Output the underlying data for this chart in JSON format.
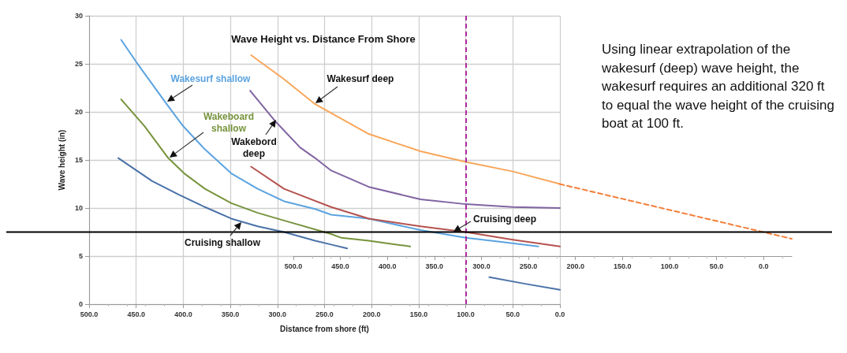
{
  "chart_data": {
    "type": "line",
    "title": "Wave Height vs. Distance From Shore",
    "xlabel": "Distance from shore (ft)",
    "ylabel": "Wave height (in)",
    "xlim": [
      500,
      0
    ],
    "xticks": [
      {
        "value": 500,
        "label": "500.0"
      },
      {
        "value": 450,
        "label": "450.0"
      },
      {
        "value": 400,
        "label": "400.0"
      },
      {
        "value": 350,
        "label": "350.0"
      },
      {
        "value": 300,
        "label": "300.0"
      },
      {
        "value": 250,
        "label": "250.0"
      },
      {
        "value": 200,
        "label": "200.0"
      },
      {
        "value": 150,
        "label": "150.0"
      },
      {
        "value": 100,
        "label": "100.0"
      },
      {
        "value": 50,
        "label": "50.0"
      },
      {
        "value": 0,
        "label": "0.0"
      }
    ],
    "x2lim": [
      500,
      -30
    ],
    "x2ticks": [
      {
        "value": 500,
        "label": "500.0"
      },
      {
        "value": 450,
        "label": "450.0"
      },
      {
        "value": 400,
        "label": "400.0"
      },
      {
        "value": 350,
        "label": "350.0"
      },
      {
        "value": 300,
        "label": "300.0"
      },
      {
        "value": 250,
        "label": "250.0"
      },
      {
        "value": 200,
        "label": "200.0"
      },
      {
        "value": 150,
        "label": "150.0"
      },
      {
        "value": 100,
        "label": "100.0"
      },
      {
        "value": 50,
        "label": "50.0"
      },
      {
        "value": 0,
        "label": "0.0"
      }
    ],
    "ylim": [
      0,
      30
    ],
    "yticks": [
      0,
      5,
      10,
      15,
      20,
      25,
      30
    ],
    "grid": true,
    "legend": false,
    "marker": "none",
    "line_style": "solid",
    "series": [
      {
        "name": "Wakesurf shallow",
        "color": "#5ba3e0",
        "x": [
          466,
          450,
          419,
          400,
          377,
          349,
          321,
          293,
          260,
          243,
          203,
          148,
          100,
          64,
          23
        ],
        "values": [
          27.5,
          25.2,
          21,
          18.5,
          16.1,
          13.6,
          12,
          10.7,
          9.9,
          9.3,
          8.9,
          7.7,
          6.9,
          6.5,
          6
        ]
      },
      {
        "name": "Wakeboard shallow",
        "color": "#77933c",
        "x": [
          466,
          441,
          416,
          399,
          377,
          349,
          321,
          293,
          243,
          232,
          203,
          159
        ],
        "values": [
          21.3,
          18.5,
          15.2,
          13.6,
          12,
          10.5,
          9.5,
          8.7,
          7.3,
          6.9,
          6.6,
          6
        ]
      },
      {
        "name": "Cruising shallow",
        "color": "#4a72a8",
        "x": [
          469,
          433,
          405,
          377,
          349,
          321,
          293,
          260,
          243,
          226,
          150,
          75,
          36,
          0
        ],
        "values": [
          15.2,
          12.8,
          11.4,
          10.1,
          8.9,
          8.1,
          7.5,
          6.6,
          6.2,
          5.8,
          null,
          2.8,
          2.1,
          1.5
        ]
      },
      {
        "name": "Wakesurf deep",
        "color": "#f9a65a",
        "x": [
          328,
          293,
          260,
          203,
          148,
          100,
          50,
          0
        ],
        "values": [
          25.9,
          23.4,
          20.8,
          17.7,
          15.9,
          14.8,
          13.8,
          12.5
        ]
      },
      {
        "name": "Wakebord deep",
        "color": "#8064a2",
        "x": [
          329,
          303,
          276,
          260,
          243,
          203,
          148,
          100,
          50,
          0
        ],
        "values": [
          22.2,
          19.1,
          16.3,
          15.2,
          13.9,
          12.2,
          10.9,
          10.4,
          10.1,
          10
        ]
      },
      {
        "name": "Cruising deep",
        "color": "#b5524e",
        "x": [
          328,
          293,
          243,
          203,
          148,
          100,
          50,
          0
        ],
        "values": [
          14.3,
          12,
          10.1,
          8.9,
          8.1,
          7.5,
          6.7,
          6
        ]
      },
      {
        "color": "#f57f3b",
        "axis": "x2",
        "line_style": "dashed",
        "x": [
          217,
          -30
        ],
        "values": [
          12.5,
          6.8
        ]
      }
    ],
    "ref_lines": [
      {
        "axis": "y",
        "value": 7.5,
        "color": "#000000",
        "line_style": "solid"
      },
      {
        "axis": "x",
        "value": 100,
        "color": "#b0289f",
        "line_style": "dashed"
      }
    ],
    "annotations": [
      "Using linear extrapolation of the wakesurf (deep) wave height, the wakesurf requires an additional 320 ft to equal the wave height of the cruising boat at 100 ft."
    ]
  }
}
